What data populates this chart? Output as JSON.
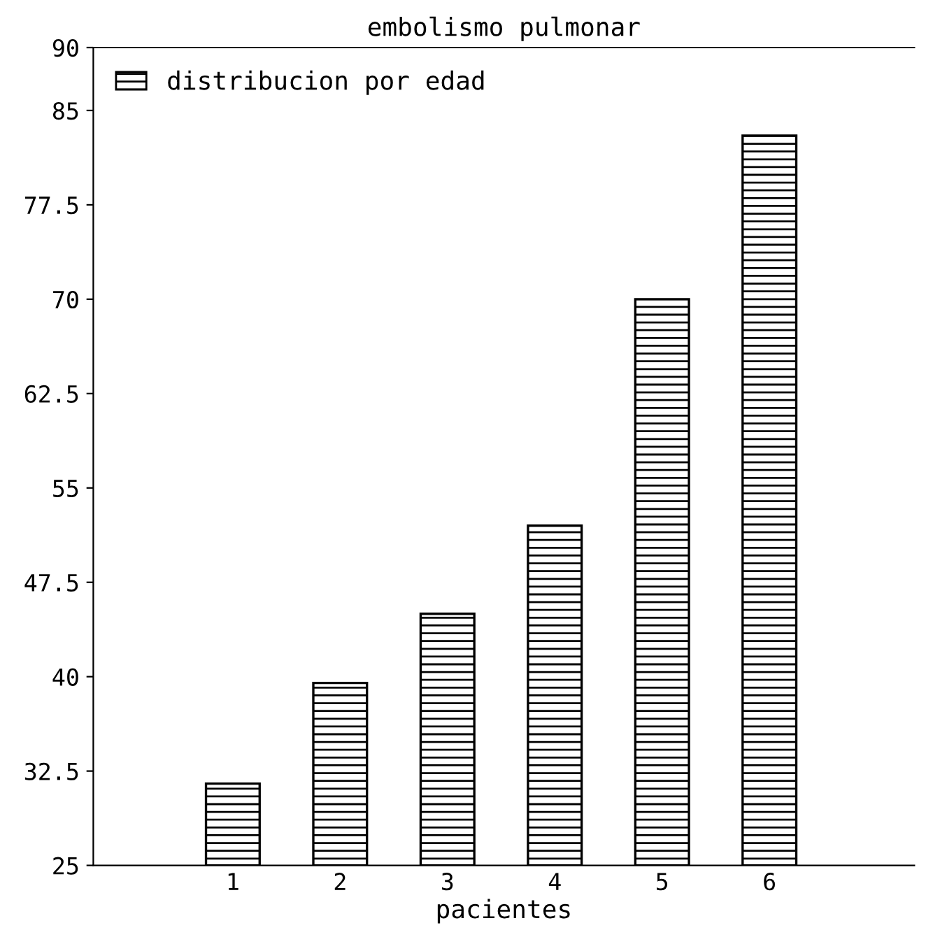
{
  "chart_data": {
    "type": "bar",
    "title": "embolismo pulmonar",
    "xlabel": "pacientes",
    "categories": [
      "1",
      "2",
      "3",
      "4",
      "5",
      "6"
    ],
    "series": [
      {
        "name": "distribucion por edad",
        "color": "#000000",
        "values": [
          31.5,
          39.5,
          45,
          52,
          70,
          83
        ]
      }
    ],
    "ylim": [
      25,
      90
    ],
    "yticks": [
      25,
      32.5,
      40,
      47.5,
      55,
      62.5,
      70,
      77.5,
      85,
      90
    ],
    "legend": "top left",
    "grid": false
  }
}
